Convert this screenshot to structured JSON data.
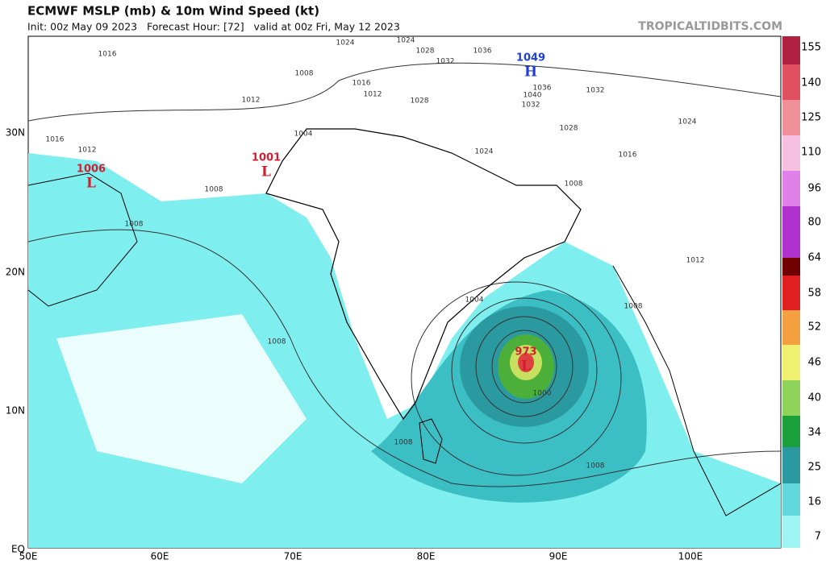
{
  "header": {
    "title": "ECMWF MSLP (mb) & 10m Wind Speed (kt)",
    "init": "Init: 00z May 09 2023   Forecast Hour: [72]   valid at 00z Fri, May 12 2023",
    "source": "TROPICALTIDBITS.COM"
  },
  "lat_labels": [
    "30N",
    "20N",
    "10N",
    "EQ"
  ],
  "lon_labels": [
    "50E",
    "60E",
    "70E",
    "80E",
    "90E",
    "100E"
  ],
  "colorbar": {
    "labels": [
      155,
      140,
      125,
      110,
      96,
      80,
      64,
      58,
      52,
      46,
      40,
      34,
      25,
      16,
      7
    ]
  },
  "centers": [
    {
      "value": 1006,
      "letter": "L"
    },
    {
      "value": 1001,
      "letter": "L"
    },
    {
      "value": 973,
      "letter": "L"
    },
    {
      "value": 1049,
      "letter": "H"
    }
  ],
  "contours": [
    1016,
    1024,
    1024,
    1028,
    1032,
    1036,
    1008,
    1016,
    1012,
    1012,
    1028,
    1040,
    1036,
    1032,
    1032,
    1024,
    1004,
    1028,
    1016,
    1012,
    1024,
    1016,
    1008,
    1008,
    1008,
    1012,
    1004,
    1008,
    1008,
    1000,
    1008,
    1008
  ]
}
